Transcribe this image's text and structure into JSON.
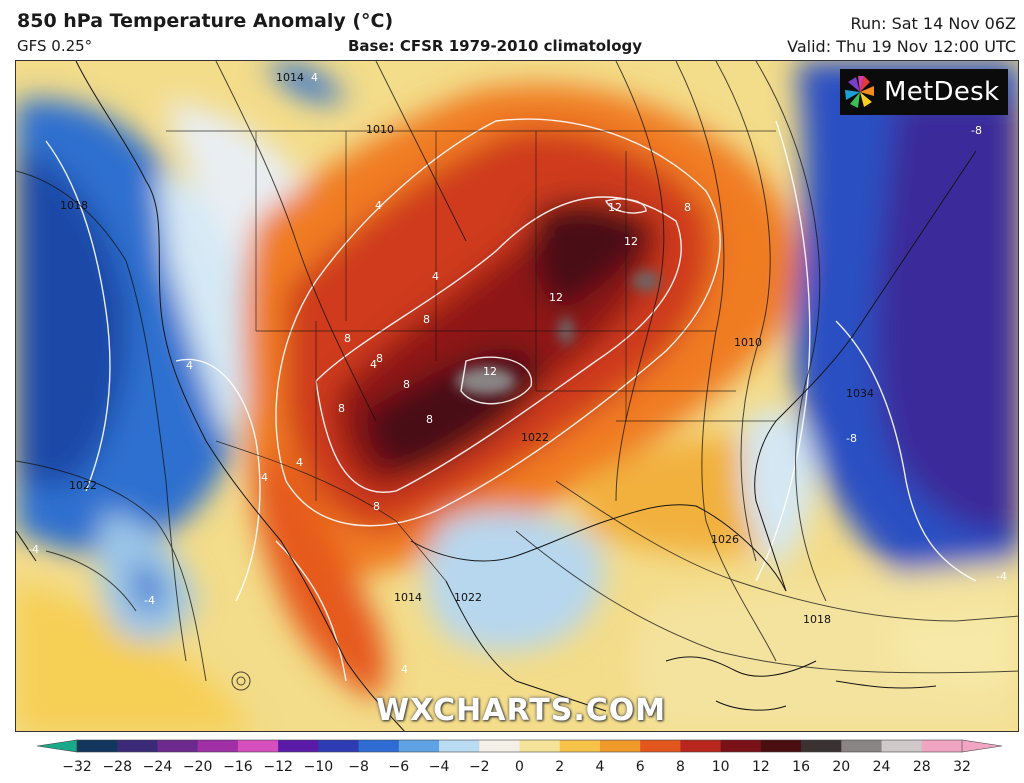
{
  "header": {
    "title": "850 hPa Temperature Anomaly (°C)",
    "model": "GFS 0.25°",
    "base": "Base: CFSR 1979-2010 climatology",
    "run": "Run: Sat 14 Nov 06Z",
    "valid": "Valid: Thu 19 Nov 12:00 UTC"
  },
  "logo": {
    "text": "MetDesk",
    "icon": "pinwheel-icon"
  },
  "watermark": "WXCHARTS.COM",
  "map": {
    "anomaly_labels": [
      "4",
      "4",
      "4",
      "4",
      "4",
      "4",
      "4",
      "4",
      "8",
      "8",
      "8",
      "8",
      "8",
      "8",
      "8",
      "8",
      "12",
      "12",
      "12",
      "12",
      "-4",
      "-4",
      "-4",
      "-8",
      "-8"
    ],
    "isobar_labels": [
      "1014",
      "1010",
      "1018",
      "1022",
      "1010",
      "1022",
      "1026",
      "1018",
      "1014",
      "1022",
      "1034"
    ]
  },
  "colorbar": {
    "ticks": [
      "-32",
      "-28",
      "-24",
      "-20",
      "-16",
      "-12",
      "-10",
      "-8",
      "-6",
      "-4",
      "-2",
      "0",
      "2",
      "4",
      "6",
      "8",
      "10",
      "12",
      "16",
      "20",
      "24",
      "28",
      "32"
    ],
    "colors": [
      "#1aa88a",
      "#12365e",
      "#3a2a78",
      "#6c2a8f",
      "#a12fa5",
      "#d64fbf",
      "#5a1aa8",
      "#2d3cb3",
      "#2e6cd4",
      "#5fa2e6",
      "#b9dcf2",
      "#f4f0e8",
      "#f6e39a",
      "#f6c24a",
      "#f19a2c",
      "#e3571e",
      "#b8271d",
      "#7a1018",
      "#4a0d10",
      "#3a3232",
      "#8a8585",
      "#cfc9c9",
      "#f0a6c2"
    ]
  }
}
